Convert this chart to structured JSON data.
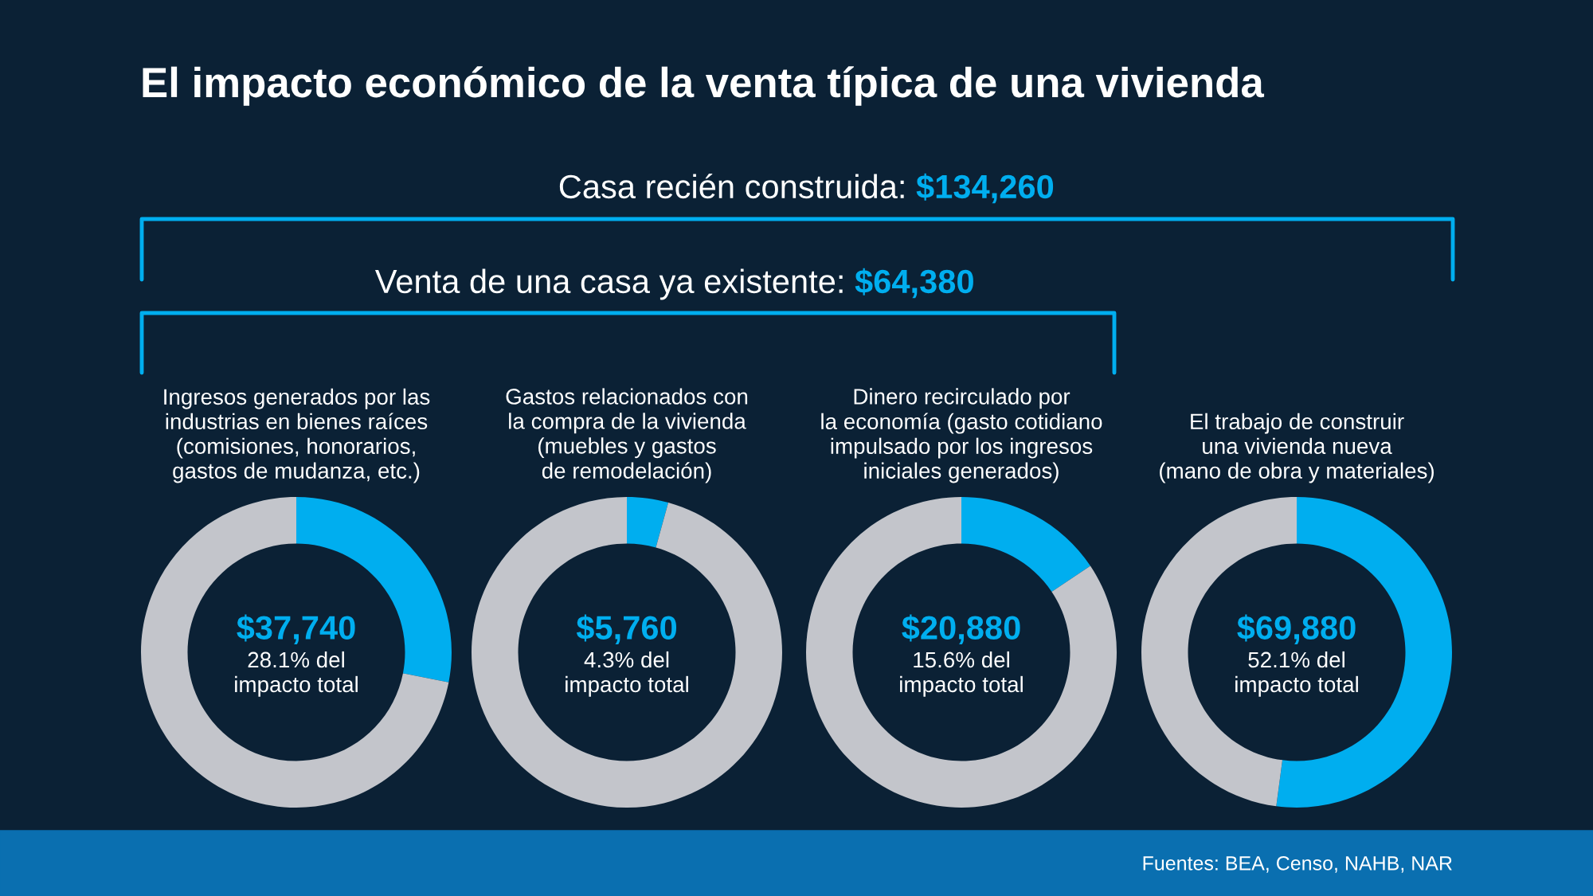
{
  "chart_data": [
    {
      "type": "other",
      "title": "El impacto económico de la venta típica de una vivienda",
      "annotations": [
        "Casa recién construida: ",
        "$134,260",
        "Venta de una casa ya existente: ",
        "$64,380",
        "Fuentes: BEA, Censo, NAHB, NAR"
      ]
    },
    {
      "type": "donut",
      "title": "Ingresos generados por las\nindustrias en bienes raíces\n(comisiones, honorarios,\ngastos de mudanza, etc.)",
      "categories": [
        null,
        null
      ],
      "values": [
        28.1,
        71.9
      ],
      "colors": [
        "#00aeef",
        "#c3c5cb"
      ],
      "annotations": [
        "$37,740",
        "28.1% del\nimpacto total"
      ]
    },
    {
      "type": "donut",
      "title": "Gastos relacionados con\nla compra de la vivienda\n(muebles y gastos\nde remodelación)",
      "categories": [
        null,
        null
      ],
      "values": [
        4.3,
        95.7
      ],
      "colors": [
        "#00aeef",
        "#c3c5cb"
      ],
      "annotations": [
        "$5,760",
        "4.3% del\nimpacto total"
      ]
    },
    {
      "type": "donut",
      "title": "Dinero recirculado por\nla economía (gasto cotidiano\nimpulsado por los ingresos\niniciales generados)",
      "categories": [
        null,
        null
      ],
      "values": [
        15.6,
        84.4
      ],
      "colors": [
        "#00aeef",
        "#c3c5cb"
      ],
      "annotations": [
        "$20,880",
        "15.6% del\nimpacto total"
      ]
    },
    {
      "type": "donut",
      "title": "El trabajo de construir\nuna vivienda nueva\n(mano de obra y materiales)",
      "categories": [
        null,
        null
      ],
      "values": [
        52.1,
        47.9
      ],
      "colors": [
        "#00aeef",
        "#c3c5cb"
      ],
      "annotations": [
        "$69,880",
        "52.1% del\nimpacto total"
      ]
    }
  ]
}
